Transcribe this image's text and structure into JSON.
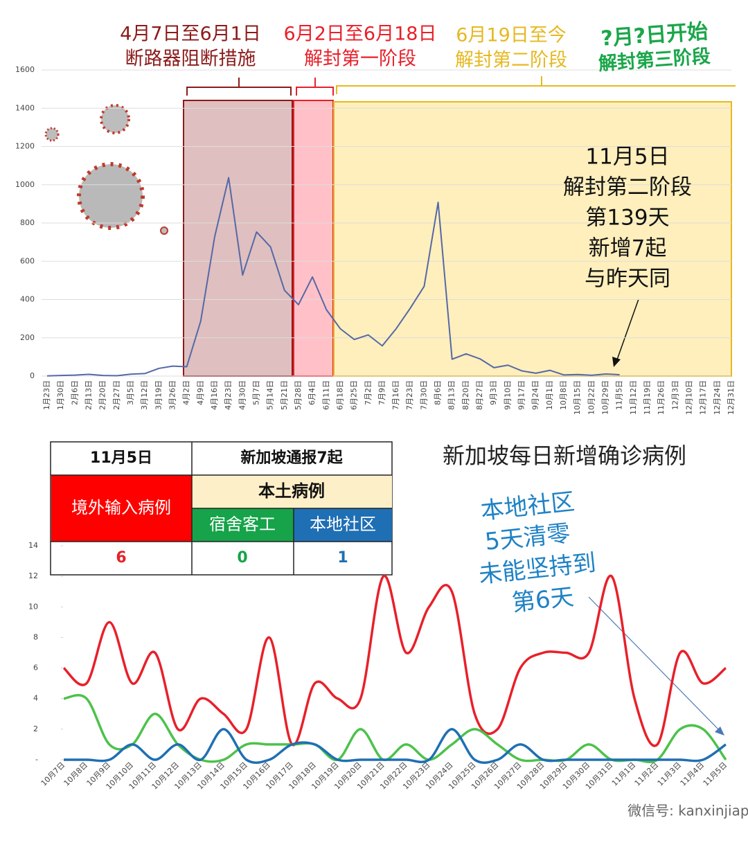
{
  "chart_data": [
    {
      "type": "line",
      "categories": [
        "1月23日",
        "1月30日",
        "2月6日",
        "2月13日",
        "2月20日",
        "2月27日",
        "3月5日",
        "3月12日",
        "3月19日",
        "3月26日",
        "4月2日",
        "4月9日",
        "4月16日",
        "4月23日",
        "4月30日",
        "5月7日",
        "5月14日",
        "5月21日",
        "5月28日",
        "6月4日",
        "6月11日",
        "6月18日",
        "6月25日",
        "7月2日",
        "7月9日",
        "7月16日",
        "7月23日",
        "7月30日",
        "8月6日",
        "8月13日",
        "8月20日",
        "8月27日",
        "9月3日",
        "9月10日",
        "9月17日",
        "9月24日",
        "10月1日",
        "10月8日",
        "10月15日",
        "10月22日",
        "10月29日",
        "11月5日",
        "11月12日",
        "11月19日",
        "11月26日",
        "12月3日",
        "12月10日",
        "12月17日",
        "12月24日",
        "12月31日"
      ],
      "series": [
        {
          "color": "#5568a8",
          "values": [
            1,
            3,
            5,
            9,
            3,
            2,
            10,
            13,
            40,
            52,
            49,
            287,
            728,
            1037,
            528,
            753,
            675,
            448,
            373,
            518,
            347,
            247,
            191,
            215,
            158,
            248,
            354,
            469,
            908,
            88,
            116,
            90,
            44,
            57,
            27,
            15,
            30,
            6,
            8,
            4,
            11,
            7,
            null,
            null,
            null,
            null,
            null,
            null,
            null,
            null
          ]
        }
      ],
      "ylim": [
        0,
        1600
      ],
      "yticks": [
        0,
        200,
        400,
        600,
        800,
        1000,
        1200,
        1400,
        1600
      ],
      "grid": true,
      "phases": [
        {
          "lines": [
            "4月7日至6月1日",
            "断路器阻断措施"
          ],
          "color": "#8b1a1a"
        },
        {
          "lines": [
            "6月2日至6月18日",
            "解封第一阶段"
          ],
          "color": "#e8202a"
        },
        {
          "lines": [
            "6月19日至今",
            "解封第二阶段"
          ],
          "color": "#e6b820"
        },
        {
          "lines": [
            "?月?日开始",
            "解封第三阶段"
          ],
          "color": "#1aa64a"
        }
      ],
      "annotation": [
        "11月5日",
        "解封第二阶段",
        "第139天",
        "新增7起",
        "与昨天同"
      ]
    },
    {
      "type": "line",
      "title": "新加坡每日新增确诊病例",
      "categories": [
        "10月7日",
        "10月8日",
        "10月9日",
        "10月10日",
        "10月11日",
        "10月12日",
        "10月13日",
        "10月14日",
        "10月15日",
        "10月16日",
        "10月17日",
        "10月18日",
        "10月19日",
        "10月20日",
        "10月21日",
        "10月22日",
        "10月23日",
        "10月24日",
        "10月25日",
        "10月26日",
        "10月27日",
        "10月28日",
        "10月29日",
        "10月30日",
        "10月31日",
        "11月1日",
        "11月2日",
        "11月3日",
        "11月4日",
        "11月5日"
      ],
      "series": [
        {
          "color": "#e8202a",
          "values": [
            6,
            5,
            9,
            5,
            7,
            2,
            4,
            3,
            2,
            8,
            1,
            5,
            4,
            4,
            12,
            7,
            10,
            11,
            3,
            2,
            6,
            7,
            7,
            7,
            12,
            4,
            1,
            7,
            5,
            6
          ]
        },
        {
          "color": "#4cc24a",
          "values": [
            4,
            4,
            1,
            1,
            3,
            1,
            0,
            0,
            1,
            1,
            1,
            1,
            0,
            2,
            0,
            1,
            0,
            1,
            2,
            1,
            0,
            0,
            0,
            1,
            0,
            0,
            0,
            2,
            2,
            0
          ]
        },
        {
          "color": "#1f6fb4",
          "values": [
            0,
            0,
            0,
            1,
            0,
            1,
            0,
            2,
            0,
            0,
            1,
            1,
            0,
            0,
            0,
            0,
            0,
            2,
            0,
            0,
            1,
            0,
            0,
            0,
            0,
            0,
            0,
            0,
            0,
            1
          ]
        }
      ],
      "ylim": [
        0,
        14
      ],
      "yticks": [
        {
          "value": 0,
          "label": "-"
        },
        2,
        4,
        6,
        8,
        10,
        12,
        14
      ],
      "annotation": [
        "本地社区",
        "5天清零",
        "未能坚持到",
        "第6天"
      ]
    }
  ],
  "table": {
    "date": "11月5日",
    "total": "新加坡通报7起",
    "imported": "境外输入病例",
    "local": "本土病例",
    "sub": [
      "宿舍客工",
      "本地社区"
    ],
    "counts": [
      6,
      0,
      1
    ]
  },
  "footer": "微信号: kanxinjiapo"
}
